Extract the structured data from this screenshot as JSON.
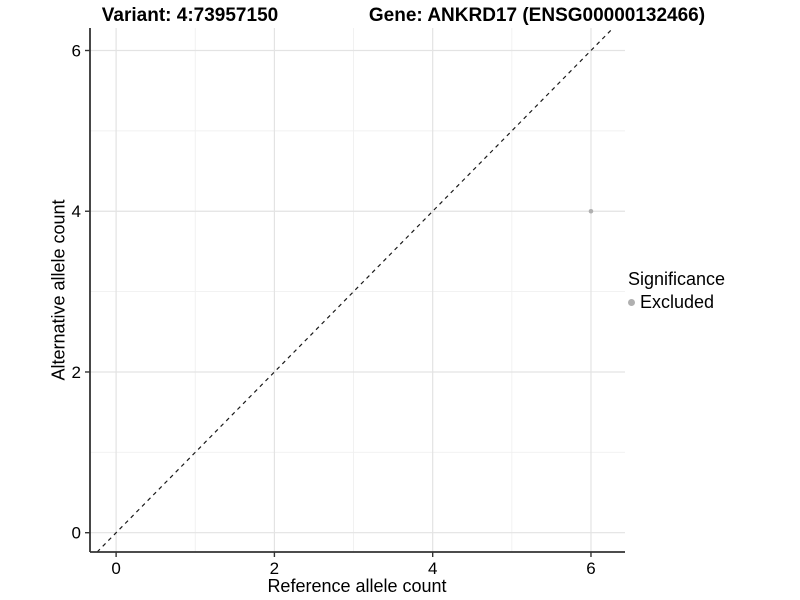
{
  "titles": {
    "left": "Variant: 4:73957150",
    "right": "Gene: ANKRD17 (ENSG00000132466)"
  },
  "chart_data": {
    "type": "scatter",
    "xlabel": "Reference allele count",
    "ylabel": "Alternative allele count",
    "xlim": [
      -0.33,
      6.43
    ],
    "ylim": [
      -0.24,
      6.28
    ],
    "xticks": [
      0,
      2,
      4,
      6
    ],
    "yticks": [
      0,
      2,
      4,
      6
    ],
    "xticks_minor": [
      1,
      3,
      5
    ],
    "yticks_minor": [
      1,
      3,
      5
    ],
    "grid": true,
    "points": [
      {
        "x": 6,
        "y": 4,
        "series": "Excluded",
        "color": "#b0b0b0",
        "r": 2.3
      }
    ],
    "reference_line": {
      "kind": "identity",
      "slope": 1,
      "intercept": 0,
      "style": "dashed"
    },
    "legend": {
      "title": "Significance",
      "position": "right",
      "items": [
        {
          "label": "Excluded",
          "color": "#b0b0b0"
        }
      ]
    }
  },
  "colors": {
    "background": "#ffffff",
    "grid_major": "#e3e3e3",
    "grid_minor": "#f0f0f0",
    "axis_line": "#333333",
    "tick_mark": "#333333",
    "dashed_line": "#1a1a1a",
    "text": "#000000"
  }
}
